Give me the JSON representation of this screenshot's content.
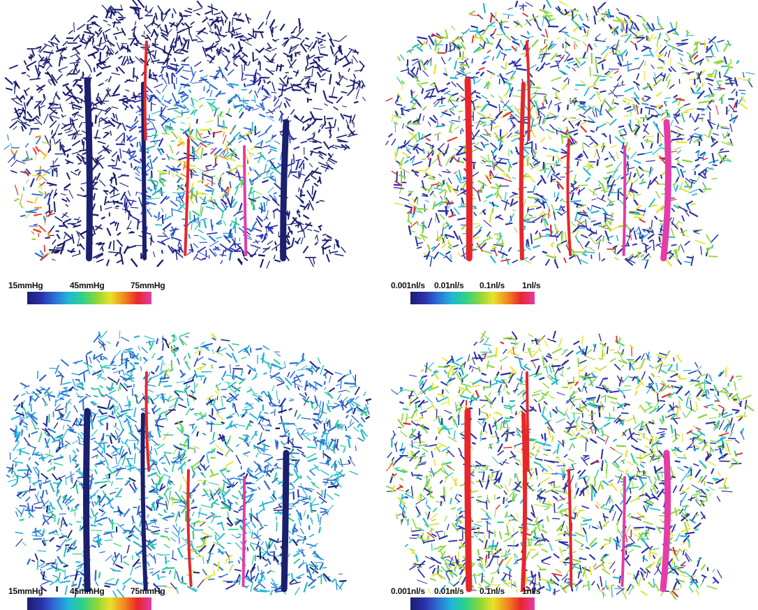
{
  "colormap": [
    "#1a1f6e",
    "#2b2fa8",
    "#2f6fd6",
    "#20b7d6",
    "#2cd28a",
    "#8bd63a",
    "#e8e22a",
    "#f28a1e",
    "#e8262a",
    "#e43ca8"
  ],
  "panels": [
    {
      "id": "pressure-top",
      "colorbar": {
        "labels": [
          "15mmHg",
          "45mmHg",
          "75mmHg"
        ]
      }
    },
    {
      "id": "flow-top",
      "colorbar": {
        "labels": [
          "0.001nl/s",
          "0.01nl/s",
          "0.1nl/s",
          "1nl/s"
        ]
      }
    },
    {
      "id": "pressure-bottom",
      "colorbar": {
        "labels": [
          "15mmHg",
          "45mmHg",
          "75mmHg"
        ]
      }
    },
    {
      "id": "flow-bottom",
      "colorbar": {
        "labels": [
          "0.001nl/s",
          "0.01nl/s",
          "0.1nl/s",
          "1nl/s"
        ]
      }
    }
  ]
}
